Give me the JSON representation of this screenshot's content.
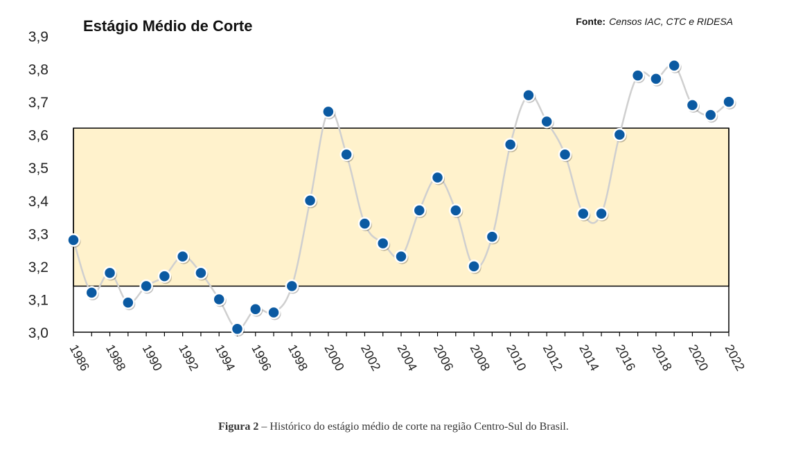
{
  "chart_data": {
    "type": "line",
    "title": "Estágio Médio de Corte",
    "source_label": "Fonte:",
    "source_text": "Censos IAC, CTC e RIDESA",
    "x": [
      1986,
      1987,
      1988,
      1989,
      1990,
      1991,
      1992,
      1993,
      1994,
      1995,
      1996,
      1997,
      1998,
      1999,
      2000,
      2001,
      2002,
      2003,
      2004,
      2005,
      2006,
      2007,
      2008,
      2009,
      2010,
      2011,
      2012,
      2013,
      2014,
      2015,
      2016,
      2017,
      2018,
      2019,
      2020,
      2021,
      2022
    ],
    "values": [
      3.28,
      3.12,
      3.18,
      3.09,
      3.14,
      3.17,
      3.23,
      3.18,
      3.1,
      3.01,
      3.07,
      3.06,
      3.14,
      3.4,
      3.67,
      3.54,
      3.33,
      3.27,
      3.23,
      3.37,
      3.47,
      3.37,
      3.2,
      3.29,
      3.57,
      3.72,
      3.64,
      3.54,
      3.36,
      3.36,
      3.6,
      3.78,
      3.77,
      3.81,
      3.69,
      3.66,
      3.7
    ],
    "x_tick_labels": [
      "1986",
      "1988",
      "1990",
      "1992",
      "1994",
      "1996",
      "1998",
      "2000",
      "2002",
      "2004",
      "2006",
      "2008",
      "2010",
      "2012",
      "2014",
      "2016",
      "2018",
      "2020",
      "2022"
    ],
    "y_tick_labels": [
      "3,0",
      "3,1",
      "3,2",
      "3,3",
      "3,4",
      "3,5",
      "3,6",
      "3,7",
      "3,8",
      "3,9"
    ],
    "ylim": [
      3.0,
      3.9
    ],
    "band": {
      "low": 3.14,
      "high": 3.62,
      "color": "#FFF2CC"
    },
    "grid": false,
    "line_color": "#cfcfcf",
    "marker_color": "#0B5AA2"
  },
  "caption": {
    "label": "Figura 2",
    "text": " – Histórico do estágio médio de corte na região Centro-Sul do Brasil."
  }
}
